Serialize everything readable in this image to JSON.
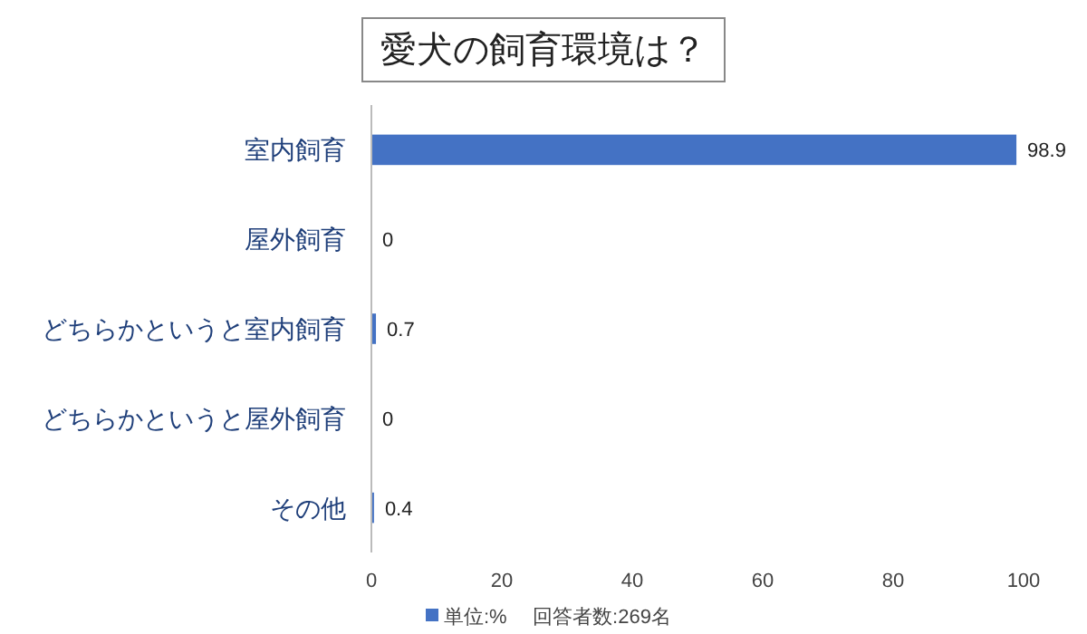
{
  "chart_data": {
    "type": "bar",
    "orientation": "horizontal",
    "title": "愛犬の飼育環境は？",
    "categories": [
      "室内飼育",
      "屋外飼育",
      "どちらかというと室内飼育",
      "どちらかというと屋外飼育",
      "その他"
    ],
    "series": [
      {
        "name": "単位:%",
        "color": "#4472c4",
        "values": [
          98.9,
          0,
          0.7,
          0,
          0.4
        ]
      }
    ],
    "xlim": [
      0,
      100
    ],
    "xticks": [
      0,
      20,
      40,
      60,
      80,
      100
    ],
    "data_labels": true,
    "legend": "bottom",
    "grid": false,
    "annotations": [
      "回答者数:269名"
    ]
  }
}
